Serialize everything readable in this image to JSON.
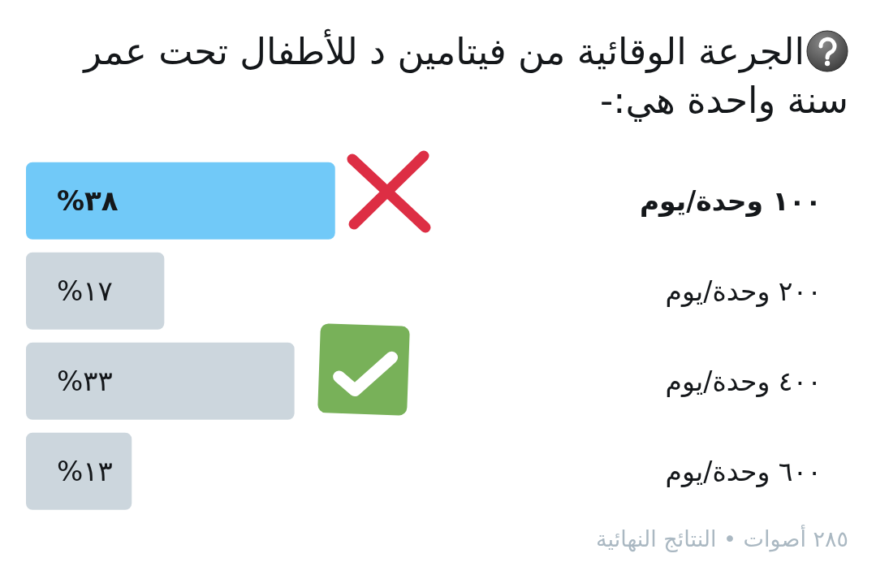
{
  "chart_data": {
    "type": "bar",
    "orientation": "horizontal",
    "title": "الجرعة الوقائية من فيتامين د للأطفال تحت عمر سنة واحدة هي:-",
    "categories": [
      "١٠٠ وحدة/يوم",
      "٢٠٠ وحدة/يوم",
      "٤٠٠ وحدة/يوم",
      "٦٠٠ وحدة/يوم"
    ],
    "values": [
      38,
      17,
      33,
      13
    ],
    "colors": [
      "#71c9f8",
      "#ccd6dd",
      "#ccd6dd",
      "#ccd6dd"
    ],
    "value_labels": [
      "%٣٨",
      "%١٧",
      "%٣٣",
      "%١٣"
    ],
    "tick_labels": "y",
    "annotations": [
      "٢٨٥ أصوات • النتائج النهائية"
    ]
  }
}
